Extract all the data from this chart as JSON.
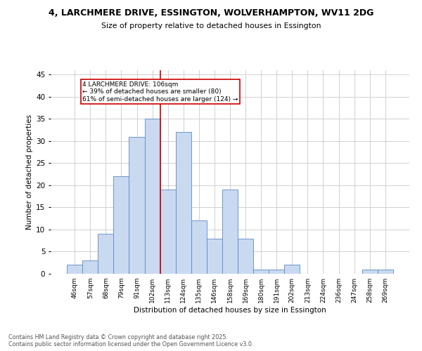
{
  "title1": "4, LARCHMERE DRIVE, ESSINGTON, WOLVERHAMPTON, WV11 2DG",
  "title2": "Size of property relative to detached houses in Essington",
  "xlabel": "Distribution of detached houses by size in Essington",
  "ylabel": "Number of detached properties",
  "annotation_line1": "4 LARCHMERE DRIVE: 106sqm",
  "annotation_line2": "← 39% of detached houses are smaller (80)",
  "annotation_line3": "61% of semi-detached houses are larger (124) →",
  "footer1": "Contains HM Land Registry data © Crown copyright and database right 2025.",
  "footer2": "Contains public sector information licensed under the Open Government Licence v3.0.",
  "bar_labels": [
    "46sqm",
    "57sqm",
    "68sqm",
    "79sqm",
    "91sqm",
    "102sqm",
    "113sqm",
    "124sqm",
    "135sqm",
    "146sqm",
    "158sqm",
    "169sqm",
    "180sqm",
    "191sqm",
    "202sqm",
    "213sqm",
    "224sqm",
    "236sqm",
    "247sqm",
    "258sqm",
    "269sqm"
  ],
  "bar_values": [
    2,
    3,
    9,
    22,
    31,
    35,
    19,
    32,
    12,
    8,
    19,
    8,
    1,
    1,
    2,
    0,
    0,
    0,
    0,
    1,
    1
  ],
  "bar_color": "#c9d9f0",
  "bar_edge_color": "#5b8ac5",
  "vline_x": 5.5,
  "vline_color": "#cc0000",
  "annotation_box_color": "#cc0000",
  "background_color": "#ffffff",
  "grid_color": "#d0d0d0",
  "ylim": [
    0,
    46
  ],
  "yticks": [
    0,
    5,
    10,
    15,
    20,
    25,
    30,
    35,
    40,
    45
  ]
}
